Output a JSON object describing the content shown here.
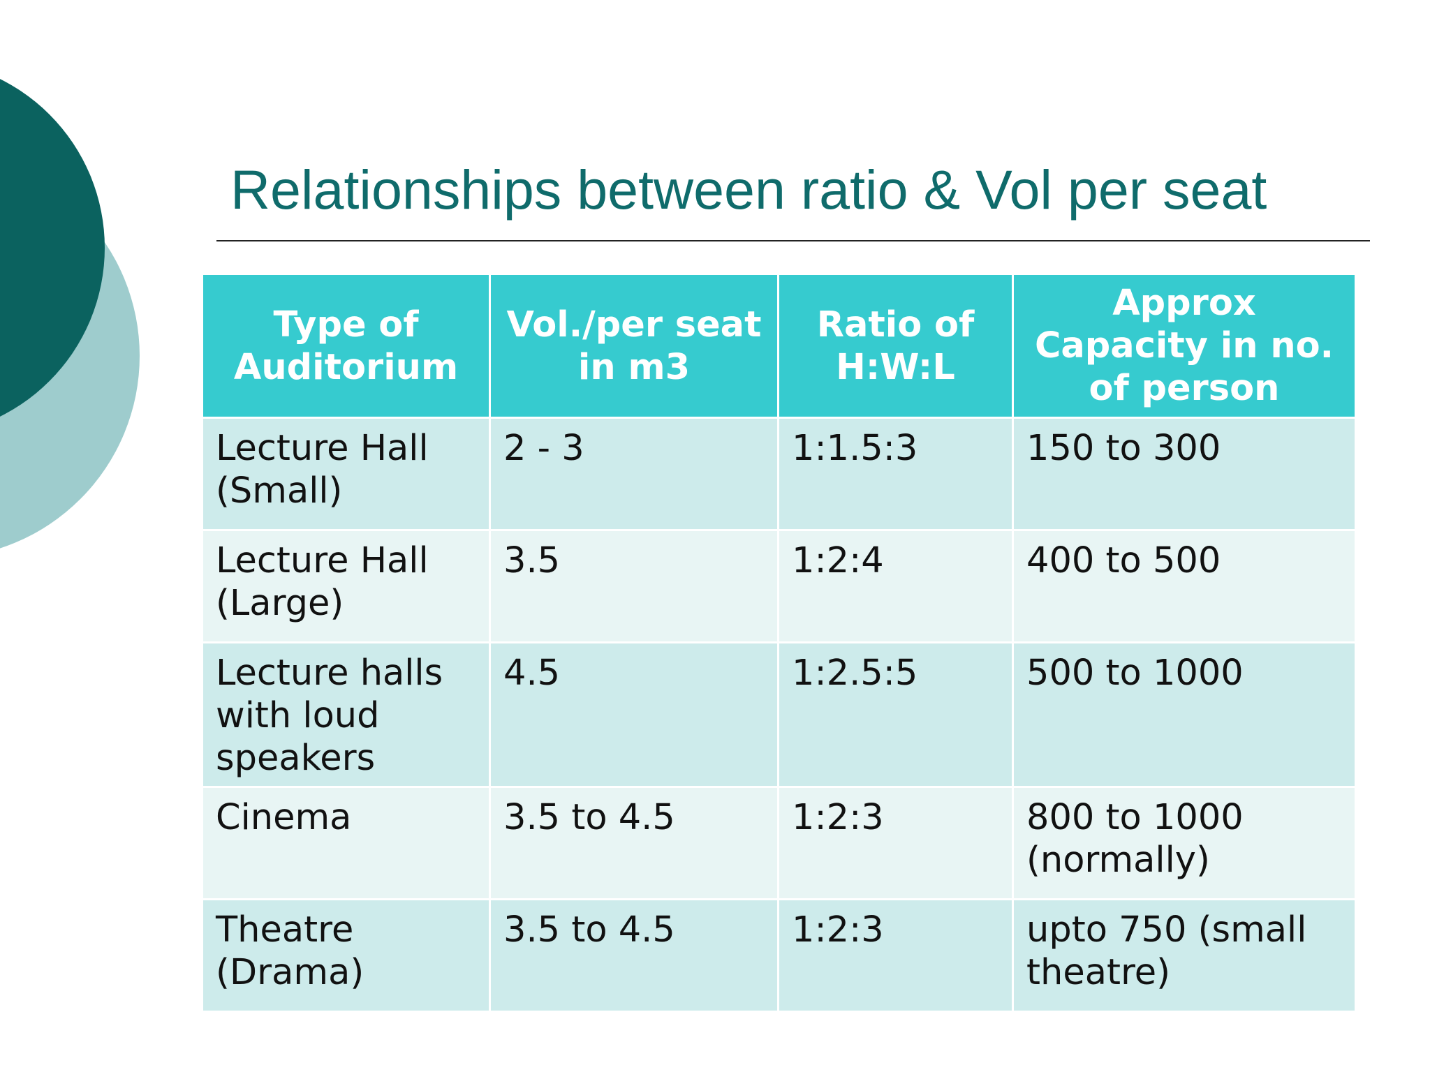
{
  "slide": {
    "title": "Relationships between ratio & Vol per seat"
  },
  "colors": {
    "title": "#0f6b6b",
    "header_bg": "#36cbcf",
    "row_dark": "#cdebeb",
    "row_light": "#e8f5f4",
    "circle_dark": "#0b625f",
    "circle_light": "#9ecccd"
  },
  "table": {
    "headers": [
      "Type of Auditorium",
      "Vol./per seat in m3",
      "Ratio of H:W:L",
      "Approx Capacity in no. of person"
    ],
    "rows": [
      {
        "type": "Lecture Hall\n(Small)",
        "vol": "2 - 3",
        "ratio": "1:1.5:3",
        "capacity": "150 to 300"
      },
      {
        "type": "Lecture Hall\n(Large)",
        "vol": "3.5",
        "ratio": "1:2:4",
        "capacity": "400 to 500"
      },
      {
        "type": "Lecture halls\nwith loud\nspeakers",
        "vol": "4.5",
        "ratio": "1:2.5:5",
        "capacity": "500 to 1000"
      },
      {
        "type": "Cinema",
        "vol": "3.5 to 4.5",
        "ratio": "1:2:3",
        "capacity": "800 to 1000\n(normally)"
      },
      {
        "type": "Theatre\n(Drama)",
        "vol": "3.5 to 4.5",
        "ratio": "1:2:3",
        "capacity": "upto 750 (small\ntheatre)"
      }
    ]
  }
}
